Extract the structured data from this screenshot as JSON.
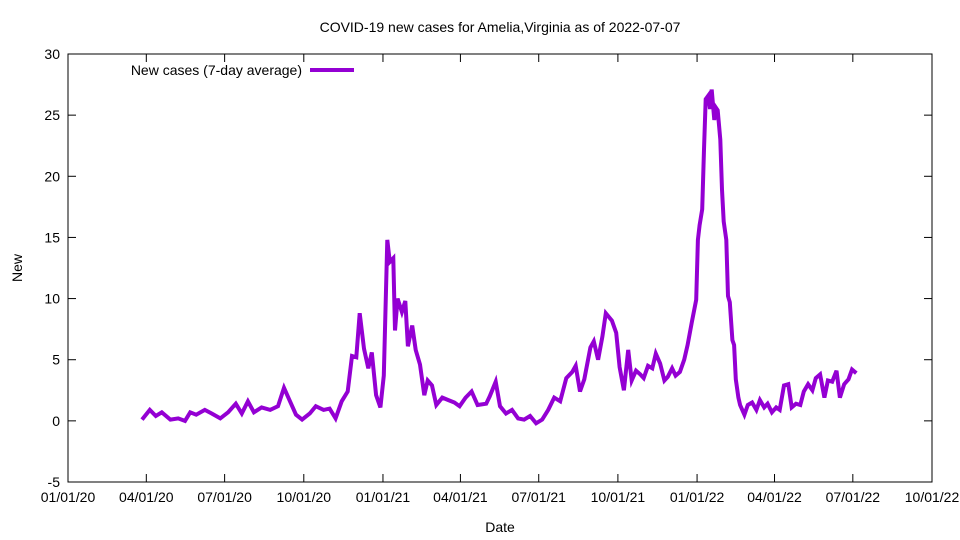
{
  "chart_data": {
    "type": "line",
    "title": "COVID-19 new cases for Amelia,Virginia as of 2022-07-07",
    "xlabel": "Date",
    "ylabel": "New",
    "x_unit": "days since 2020-01-01",
    "xlim": [
      0,
      1004
    ],
    "ylim": [
      -5,
      30
    ],
    "yticks": [
      -5,
      0,
      5,
      10,
      15,
      20,
      25,
      30
    ],
    "xticks": [
      {
        "value": 0,
        "label": "01/01/20"
      },
      {
        "value": 91,
        "label": "04/01/20"
      },
      {
        "value": 182,
        "label": "07/01/20"
      },
      {
        "value": 274,
        "label": "10/01/20"
      },
      {
        "value": 366,
        "label": "01/01/21"
      },
      {
        "value": 456,
        "label": "04/01/21"
      },
      {
        "value": 547,
        "label": "07/01/21"
      },
      {
        "value": 639,
        "label": "10/01/21"
      },
      {
        "value": 731,
        "label": "01/01/22"
      },
      {
        "value": 821,
        "label": "04/01/22"
      },
      {
        "value": 912,
        "label": "07/01/22"
      },
      {
        "value": 1004,
        "label": "10/01/22"
      }
    ],
    "grid": false,
    "legend_position": "top-left",
    "series": [
      {
        "name": "New cases (7-day average)",
        "color": "#9400d3",
        "points": [
          [
            86,
            0.1
          ],
          [
            95,
            0.9
          ],
          [
            102,
            0.4
          ],
          [
            109,
            0.7
          ],
          [
            119,
            0.1
          ],
          [
            128,
            0.2
          ],
          [
            136,
            0.0
          ],
          [
            142,
            0.7
          ],
          [
            149,
            0.5
          ],
          [
            159,
            0.9
          ],
          [
            167,
            0.6
          ],
          [
            177,
            0.2
          ],
          [
            186,
            0.7
          ],
          [
            195,
            1.4
          ],
          [
            202,
            0.6
          ],
          [
            209,
            1.6
          ],
          [
            216,
            0.7
          ],
          [
            225,
            1.1
          ],
          [
            235,
            0.9
          ],
          [
            244,
            1.2
          ],
          [
            251,
            2.7
          ],
          [
            258,
            1.6
          ],
          [
            265,
            0.5
          ],
          [
            272,
            0.1
          ],
          [
            281,
            0.6
          ],
          [
            288,
            1.2
          ],
          [
            297,
            0.9
          ],
          [
            304,
            1.0
          ],
          [
            311,
            0.2
          ],
          [
            318,
            1.6
          ],
          [
            325,
            2.4
          ],
          [
            330,
            5.3
          ],
          [
            335,
            5.2
          ],
          [
            339,
            8.8
          ],
          [
            344,
            5.9
          ],
          [
            349,
            4.3
          ],
          [
            353,
            5.6
          ],
          [
            358,
            2.1
          ],
          [
            363,
            1.1
          ],
          [
            367,
            3.7
          ],
          [
            371,
            14.8
          ],
          [
            374,
            13.0
          ],
          [
            378,
            13.3
          ],
          [
            380,
            7.4
          ],
          [
            383,
            10.0
          ],
          [
            388,
            8.9
          ],
          [
            392,
            9.8
          ],
          [
            395,
            6.1
          ],
          [
            400,
            7.8
          ],
          [
            404,
            5.8
          ],
          [
            409,
            4.6
          ],
          [
            414,
            2.1
          ],
          [
            418,
            3.3
          ],
          [
            423,
            2.9
          ],
          [
            428,
            1.3
          ],
          [
            435,
            1.9
          ],
          [
            442,
            1.7
          ],
          [
            449,
            1.5
          ],
          [
            455,
            1.2
          ],
          [
            462,
            1.9
          ],
          [
            469,
            2.4
          ],
          [
            476,
            1.3
          ],
          [
            486,
            1.4
          ],
          [
            490,
            2.0
          ],
          [
            497,
            3.2
          ],
          [
            502,
            1.2
          ],
          [
            509,
            0.6
          ],
          [
            516,
            0.9
          ],
          [
            523,
            0.2
          ],
          [
            530,
            0.1
          ],
          [
            537,
            0.4
          ],
          [
            544,
            -0.2
          ],
          [
            551,
            0.1
          ],
          [
            558,
            0.9
          ],
          [
            565,
            1.9
          ],
          [
            572,
            1.6
          ],
          [
            579,
            3.5
          ],
          [
            586,
            4.0
          ],
          [
            590,
            4.5
          ],
          [
            595,
            2.4
          ],
          [
            600,
            3.4
          ],
          [
            607,
            6.0
          ],
          [
            611,
            6.5
          ],
          [
            616,
            5.0
          ],
          [
            621,
            6.9
          ],
          [
            625,
            8.8
          ],
          [
            632,
            8.2
          ],
          [
            637,
            7.2
          ],
          [
            641,
            4.4
          ],
          [
            646,
            2.5
          ],
          [
            651,
            5.8
          ],
          [
            655,
            3.3
          ],
          [
            660,
            4.1
          ],
          [
            665,
            3.8
          ],
          [
            669,
            3.5
          ],
          [
            674,
            4.5
          ],
          [
            679,
            4.3
          ],
          [
            683,
            5.5
          ],
          [
            688,
            4.7
          ],
          [
            693,
            3.3
          ],
          [
            697,
            3.6
          ],
          [
            702,
            4.3
          ],
          [
            706,
            3.7
          ],
          [
            711,
            4.0
          ],
          [
            716,
            5.0
          ],
          [
            720,
            6.2
          ],
          [
            725,
            8.1
          ],
          [
            730,
            9.9
          ],
          [
            732,
            14.8
          ],
          [
            734,
            16.0
          ],
          [
            737,
            17.3
          ],
          [
            739,
            22.2
          ],
          [
            741,
            26.3
          ],
          [
            744,
            26.6
          ],
          [
            746,
            25.5
          ],
          [
            748,
            27.1
          ],
          [
            751,
            24.6
          ],
          [
            753,
            25.6
          ],
          [
            755,
            25.4
          ],
          [
            758,
            23.0
          ],
          [
            760,
            18.9
          ],
          [
            762,
            16.3
          ],
          [
            765,
            14.8
          ],
          [
            767,
            10.2
          ],
          [
            769,
            9.7
          ],
          [
            772,
            6.6
          ],
          [
            774,
            6.2
          ],
          [
            776,
            3.4
          ],
          [
            779,
            1.9
          ],
          [
            781,
            1.3
          ],
          [
            786,
            0.5
          ],
          [
            790,
            1.3
          ],
          [
            795,
            1.5
          ],
          [
            800,
            0.9
          ],
          [
            804,
            1.7
          ],
          [
            809,
            1.1
          ],
          [
            813,
            1.4
          ],
          [
            818,
            0.7
          ],
          [
            823,
            1.1
          ],
          [
            827,
            0.9
          ],
          [
            832,
            2.9
          ],
          [
            837,
            3.0
          ],
          [
            841,
            1.1
          ],
          [
            846,
            1.4
          ],
          [
            851,
            1.3
          ],
          [
            855,
            2.4
          ],
          [
            860,
            3.0
          ],
          [
            865,
            2.5
          ],
          [
            869,
            3.5
          ],
          [
            874,
            3.8
          ],
          [
            879,
            1.9
          ],
          [
            883,
            3.3
          ],
          [
            888,
            3.2
          ],
          [
            893,
            4.1
          ],
          [
            897,
            1.9
          ],
          [
            902,
            3.0
          ],
          [
            907,
            3.4
          ],
          [
            911,
            4.2
          ],
          [
            916,
            3.9
          ]
        ]
      }
    ]
  }
}
